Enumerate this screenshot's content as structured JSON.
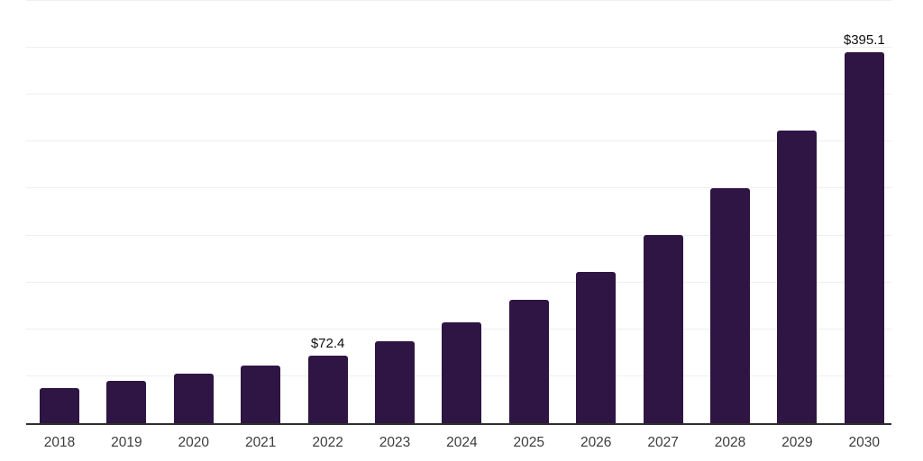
{
  "chart_data": {
    "type": "bar",
    "title": "",
    "xlabel": "",
    "ylabel": "",
    "categories": [
      "2018",
      "2019",
      "2020",
      "2021",
      "2022",
      "2023",
      "2024",
      "2025",
      "2026",
      "2027",
      "2028",
      "2029",
      "2030"
    ],
    "values": [
      37.0,
      44.7,
      52.6,
      61.2,
      72.4,
      87.7,
      107.1,
      131.7,
      161.7,
      200.9,
      250.6,
      311.4,
      395.1
    ],
    "labeled_points": [
      {
        "category": "2022",
        "label": "$72.4"
      },
      {
        "category": "2030",
        "label": "$395.1"
      }
    ],
    "ylim": [
      0,
      451
    ],
    "gridline_step": 50,
    "grid": "horizontal",
    "legend": "none",
    "colors": {
      "bar": "#2e1543",
      "axis": "#2f2f2f",
      "gridline": "#efefef",
      "tick_label": "#3c3c3c",
      "value_label": "#0d0d0d",
      "background": "#ffffff"
    }
  }
}
